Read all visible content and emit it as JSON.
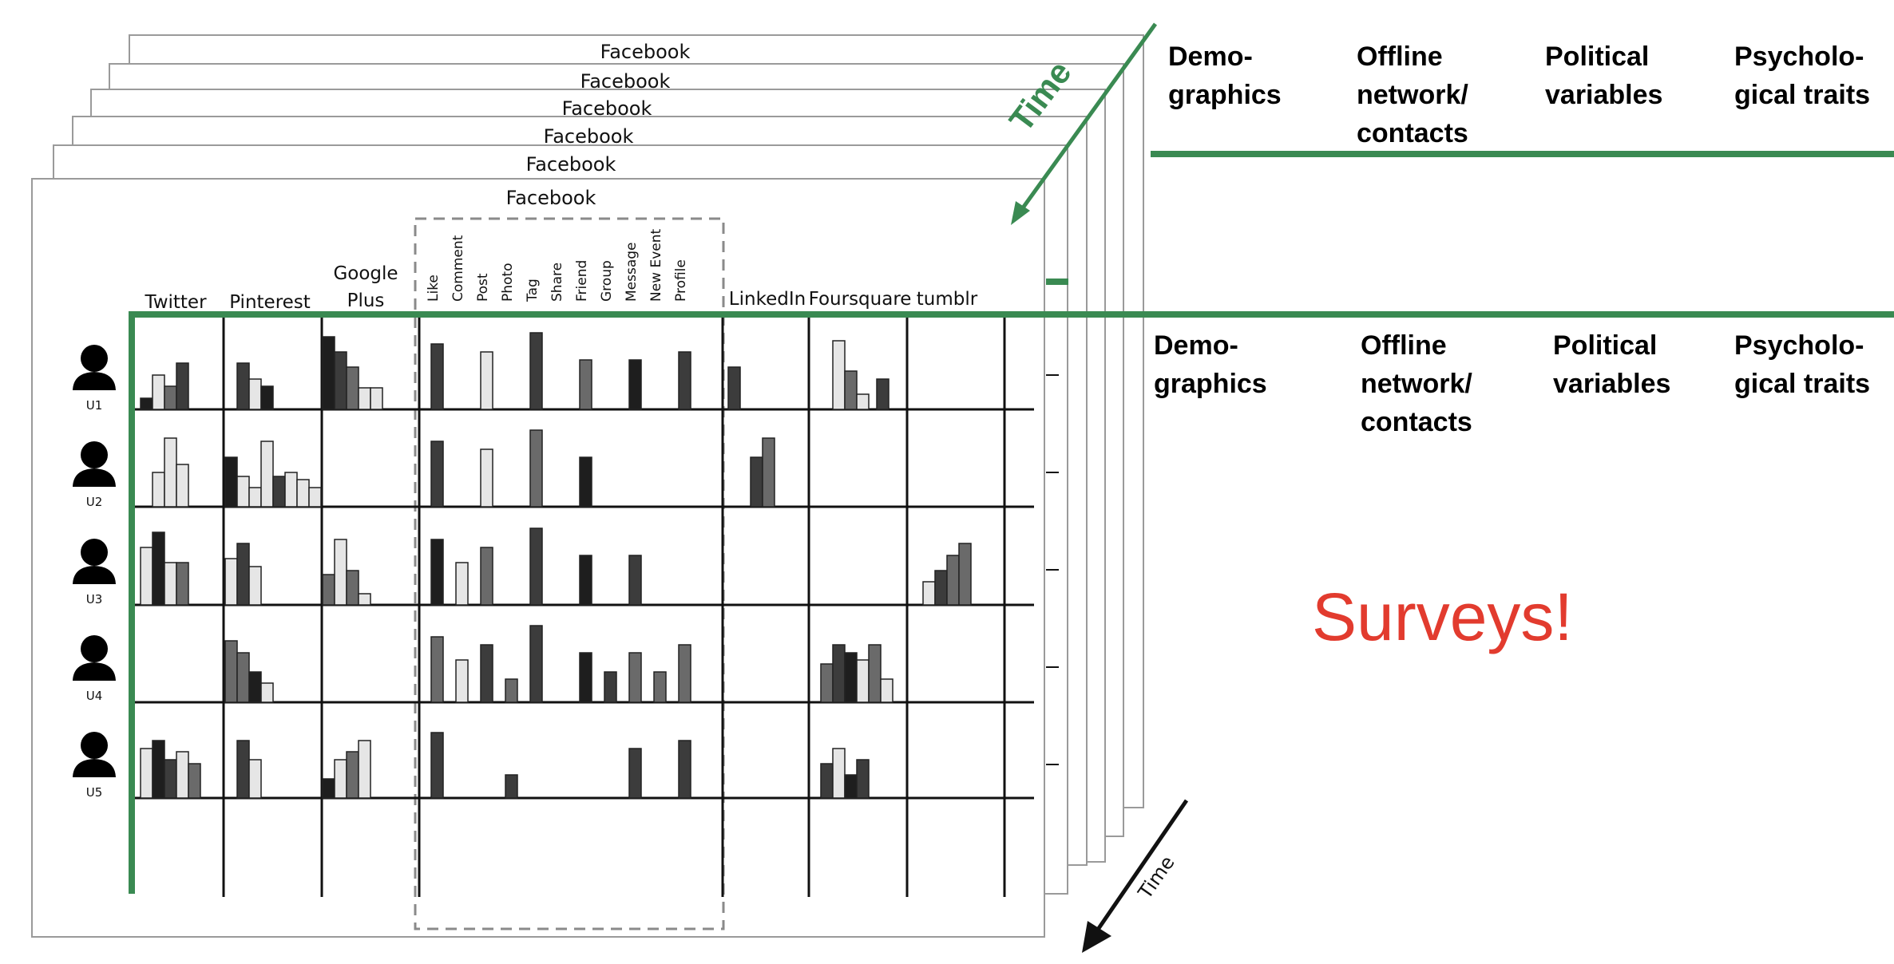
{
  "colors": {
    "accent_green": "#3a8a52",
    "surveys_red": "#e23b2e",
    "bar_shades": [
      "#1e1e1e",
      "#3c3c3c",
      "#6a6a6a",
      "#9a9a9a",
      "#e6e6e6"
    ]
  },
  "time_label_diagonal": "Time",
  "time_label_corner": "Time",
  "surveys_label": "Surveys!",
  "back_sheet_titles": [
    "Facebook",
    "Facebook",
    "Facebook",
    "Facebook",
    "Facebook"
  ],
  "front_sheet": {
    "facebook_label": "Facebook",
    "platform_columns": [
      "Twitter",
      "Pinterest",
      "Google Plus",
      "LinkedIn",
      "Foursquare",
      "tumblr"
    ],
    "facebook_actions": [
      "Like",
      "Comment",
      "Post",
      "Photo",
      "Tag",
      "Share",
      "Friend",
      "Group",
      "Message",
      "New Event",
      "Profile"
    ],
    "users": [
      "U1",
      "U2",
      "U3",
      "U4",
      "U5"
    ]
  },
  "survey_headers": {
    "top_row": [
      "Demo-\ngraphics",
      "Offline\nnetwork/\ncontacts",
      "Political\nvariables",
      "Psycholo-\ngical traits"
    ],
    "bottom_row": [
      "Demo-\ngraphics",
      "Offline\nnetwork/\ncontacts",
      "Political\nvariables",
      "Psycholo-\ngical traits"
    ]
  },
  "activity_bars": {
    "U1": {
      "Twitter": [
        [
          0,
          0.15
        ],
        [
          4,
          0.45
        ],
        [
          2,
          0.3
        ],
        [
          1,
          0.6
        ]
      ],
      "Pinterest": [
        [
          null,
          0
        ],
        [
          1,
          0.6
        ],
        [
          4,
          0.4
        ],
        [
          0,
          0.3
        ]
      ],
      "Google Plus": [
        [
          0,
          0.95
        ],
        [
          1,
          0.75
        ],
        [
          2,
          0.55
        ],
        [
          4,
          0.28
        ],
        [
          4,
          0.28
        ]
      ],
      "Facebook": [
        1,
        null,
        4,
        null,
        1,
        null,
        2,
        null,
        0,
        null,
        1,
        null,
        1,
        null,
        null,
        null,
        null,
        null,
        1,
        null,
        null
      ],
      "Foursquare": [
        [
          null,
          0
        ],
        [
          4,
          0.9
        ],
        [
          2,
          0.5
        ],
        [
          4,
          0.2
        ]
      ]
    },
    "U2": {
      "Twitter": [
        [
          null,
          0
        ],
        [
          4,
          0.45
        ],
        [
          4,
          0.9
        ],
        [
          4,
          0.55
        ]
      ],
      "Pinterest": [
        [
          0,
          0.65
        ],
        [
          4,
          0.4
        ],
        [
          4,
          0.25
        ],
        [
          4,
          0.85
        ],
        [
          1,
          0.4
        ],
        [
          4,
          0.45
        ],
        [
          4,
          0.35
        ],
        [
          4,
          0.25
        ]
      ],
      "Facebook": [
        1,
        null,
        4,
        null,
        2,
        null,
        0
      ],
      "LinkedIn": [
        [
          1,
          0.65
        ],
        [
          2,
          0.9
        ]
      ]
    },
    "U3": {
      "Twitter": [
        [
          4,
          0.75
        ],
        [
          0,
          0.95
        ],
        [
          4,
          0.55
        ],
        [
          2,
          0.55
        ]
      ],
      "Pinterest": [
        [
          4,
          0.6
        ],
        [
          1,
          0.8
        ],
        [
          4,
          0.5
        ]
      ],
      "Google Plus": [
        [
          2,
          0.4
        ],
        [
          4,
          0.85
        ],
        [
          2,
          0.45
        ],
        [
          4,
          0.15
        ]
      ],
      "Facebook": [
        0,
        4,
        2,
        null,
        1,
        null,
        0,
        null,
        1
      ],
      "tumblr": [
        [
          4,
          0.3
        ],
        [
          1,
          0.45
        ],
        [
          2,
          0.65
        ],
        [
          2,
          0.8
        ]
      ]
    },
    "U4": {
      "Pinterest": [
        [
          2,
          0.8
        ],
        [
          2,
          0.65
        ],
        [
          0,
          0.4
        ],
        [
          4,
          0.25
        ]
      ],
      "Facebook": [
        2,
        4,
        1,
        2,
        1,
        null,
        0,
        1,
        2,
        2,
        2
      ],
      "Foursquare": [
        [
          2,
          0.5
        ],
        [
          1,
          0.75
        ],
        [
          0,
          0.65
        ],
        [
          4,
          0.55
        ],
        [
          2,
          0.75
        ],
        [
          4,
          0.3
        ]
      ]
    },
    "U5": {
      "Twitter": [
        [
          4,
          0.65
        ],
        [
          0,
          0.75
        ],
        [
          1,
          0.5
        ],
        [
          4,
          0.6
        ],
        [
          2,
          0.45
        ]
      ],
      "Pinterest": [
        [
          null,
          0
        ],
        [
          1,
          0.75
        ],
        [
          4,
          0.5
        ]
      ],
      "Google Plus": [
        [
          0,
          0.25
        ],
        [
          4,
          0.5
        ],
        [
          2,
          0.6
        ],
        [
          4,
          0.75
        ]
      ],
      "Facebook": [
        1,
        null,
        null,
        1,
        null,
        null,
        null,
        null,
        1,
        null,
        1
      ],
      "Foursquare": [
        [
          1,
          0.45
        ],
        [
          4,
          0.65
        ],
        [
          0,
          0.3
        ],
        [
          1,
          0.5
        ]
      ]
    }
  }
}
